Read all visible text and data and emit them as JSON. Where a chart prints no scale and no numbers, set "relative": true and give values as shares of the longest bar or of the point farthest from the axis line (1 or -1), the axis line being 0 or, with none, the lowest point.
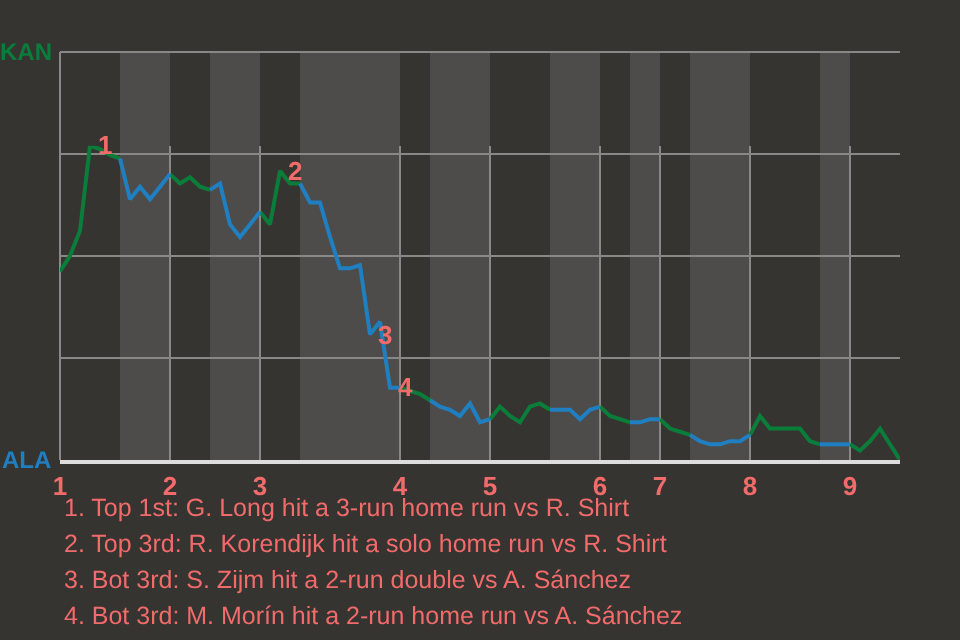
{
  "chart_data": {
    "type": "line",
    "relative": true,
    "categories": [
      "1",
      null,
      null,
      null,
      null,
      null,
      null,
      null,
      null,
      null,
      null,
      "2",
      null,
      null,
      null,
      null,
      null,
      null,
      null,
      null,
      "3",
      null,
      null,
      null,
      null,
      null,
      null,
      null,
      null,
      null,
      null,
      null,
      null,
      null,
      "4",
      null,
      null,
      null,
      null,
      null,
      null,
      null,
      null,
      "5",
      null,
      null,
      null,
      null,
      null,
      null,
      null,
      null,
      null,
      null,
      "6",
      null,
      null,
      null,
      null,
      null,
      "7",
      null,
      null,
      null,
      null,
      null,
      null,
      null,
      null,
      "8",
      null,
      null,
      null,
      null,
      null,
      null,
      null,
      null,
      null,
      "9",
      null,
      null,
      null,
      null,
      null
    ],
    "series": [
      {
        "color": "#0b7d3b",
        "values": [
          0.6,
          0.65,
          0.73,
          1,
          0.99,
          0.97,
          0.96,
          null,
          null,
          null,
          null,
          0.91,
          0.88,
          0.9,
          0.87,
          0.86,
          null,
          null,
          null,
          null,
          0.79,
          0.75,
          0.92,
          0.88,
          0.88,
          null,
          null,
          null,
          null,
          null,
          null,
          null,
          null,
          null,
          0.23,
          0.22,
          0.21,
          0.19,
          null,
          null,
          null,
          null,
          null,
          0.13,
          0.17,
          0.14,
          0.12,
          0.17,
          0.18,
          0.16,
          null,
          null,
          null,
          null,
          0.17,
          0.14,
          0.13,
          0.12,
          null,
          null,
          0.13,
          0.1,
          0.09,
          0.08,
          null,
          null,
          null,
          null,
          null,
          0.08,
          0.14,
          0.1,
          0.1,
          0.1,
          0.1,
          0.06,
          0.05,
          null,
          null,
          0.05,
          0.03,
          0.06,
          0.1,
          0.05,
          0
        ]
      },
      {
        "color": "#1f7fc0",
        "values": [
          null,
          null,
          null,
          null,
          null,
          null,
          0.96,
          0.83,
          0.87,
          0.83,
          0.87,
          0.91,
          null,
          null,
          null,
          0.86,
          0.88,
          0.75,
          0.71,
          0.75,
          0.79,
          null,
          null,
          null,
          0.88,
          0.82,
          0.82,
          0.71,
          0.61,
          0.61,
          0.62,
          0.4,
          0.44,
          0.23,
          0.23,
          null,
          null,
          0.19,
          0.17,
          0.16,
          0.14,
          0.18,
          0.12,
          0.13,
          null,
          null,
          null,
          null,
          null,
          0.16,
          0.16,
          0.16,
          0.13,
          0.16,
          0.17,
          null,
          null,
          0.12,
          0.12,
          0.13,
          0.13,
          null,
          null,
          0.08,
          0.06,
          0.05,
          0.05,
          0.06,
          0.06,
          0.08,
          null,
          null,
          null,
          null,
          null,
          null,
          0.05,
          0.05,
          0.05,
          0.05,
          null,
          null,
          null,
          null,
          null
        ]
      }
    ],
    "grid": true,
    "marker": "none",
    "line_style": "solid",
    "annotations": [
      {
        "text": "1",
        "y": 1
      },
      {
        "text": "2",
        "y": 0.92
      },
      {
        "text": "3",
        "y": 0.4
      },
      {
        "text": "4",
        "y": 0.23
      },
      "KAN",
      "ALA",
      "1. Top 1st: G. Long hit a 3-run home run vs R. Shirt",
      "2. Top 3rd: R. Korendijk hit a solo home run vs R. Shirt",
      "3. Bot 3rd: S. Zijm hit a 2-run double vs A. Sánchez",
      "4. Bot 3rd: M. Morín hit a 2-run home run vs A. Sánchez"
    ]
  }
}
